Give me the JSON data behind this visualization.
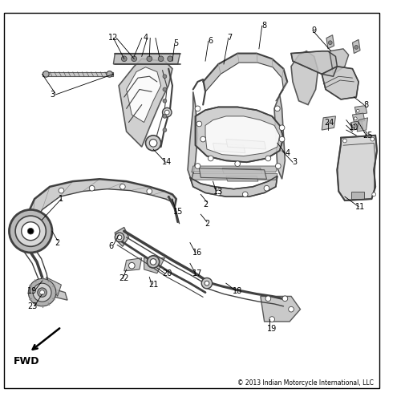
{
  "bg_color": "#ffffff",
  "border_color": "#000000",
  "lc": "#404040",
  "lc_thin": "#606060",
  "copyright": "© 2013 Indian Motorcycle International, LLC",
  "fwd_label": "FWD",
  "fig_width": 5.0,
  "fig_height": 5.0,
  "dpi": 100,
  "label_fontsize": 7.0,
  "copyright_fontsize": 5.5
}
